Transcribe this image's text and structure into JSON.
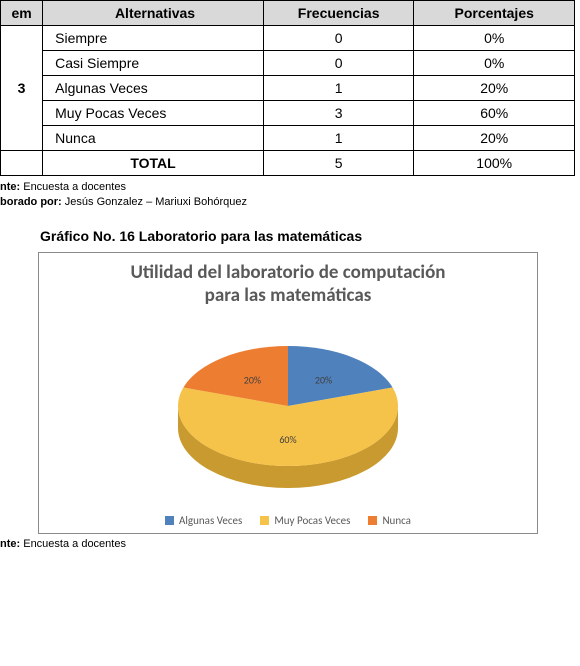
{
  "table": {
    "headers": {
      "item": "em",
      "alternatives": "Alternativas",
      "frequencies": "Frecuencias",
      "percentages": "Porcentajes"
    },
    "item_number": "3",
    "rows": [
      {
        "alt": "Siempre",
        "freq": "0",
        "pct": "0%"
      },
      {
        "alt": "Casi Siempre",
        "freq": "0",
        "pct": "0%"
      },
      {
        "alt": "Algunas Veces",
        "freq": "1",
        "pct": "20%"
      },
      {
        "alt": "Muy Pocas Veces",
        "freq": "3",
        "pct": "60%"
      },
      {
        "alt": "Nunca",
        "freq": "1",
        "pct": "20%"
      }
    ],
    "total_label": "TOTAL",
    "total_freq": "5",
    "total_pct": "100%"
  },
  "source_block": {
    "source_label": "nte:",
    "source_text": " Encuesta a docentes",
    "author_label": "borado por:",
    "author_text": " Jesús Gonzalez – Mariuxi Bohórquez"
  },
  "chart": {
    "caption": "Gráfico No. 16 Laboratorio para las matemáticas",
    "title_line1": "Utilidad del laboratorio de computación",
    "title_line2": "para las matemáticas",
    "type": "pie",
    "slices": [
      {
        "label": "Algunas Veces",
        "value": 20,
        "color": "#4f81bd",
        "display": "20%"
      },
      {
        "label": "Muy Pocas Veces",
        "value": 60,
        "color": "#f6c34a",
        "display": "60%"
      },
      {
        "label": "Nunca",
        "value": 20,
        "color": "#ed7d31",
        "display": "20%"
      }
    ],
    "side_colors": {
      "Algunas Veces": "#355a8a",
      "Muy Pocas Veces": "#c99a2f",
      "Nunca": "#b95d1f"
    },
    "label_fontsize": 10,
    "label_color": "#404040",
    "background_color": "#ffffff"
  },
  "bottom_source": {
    "label": "nte:",
    "text": " Encuesta a docentes"
  }
}
